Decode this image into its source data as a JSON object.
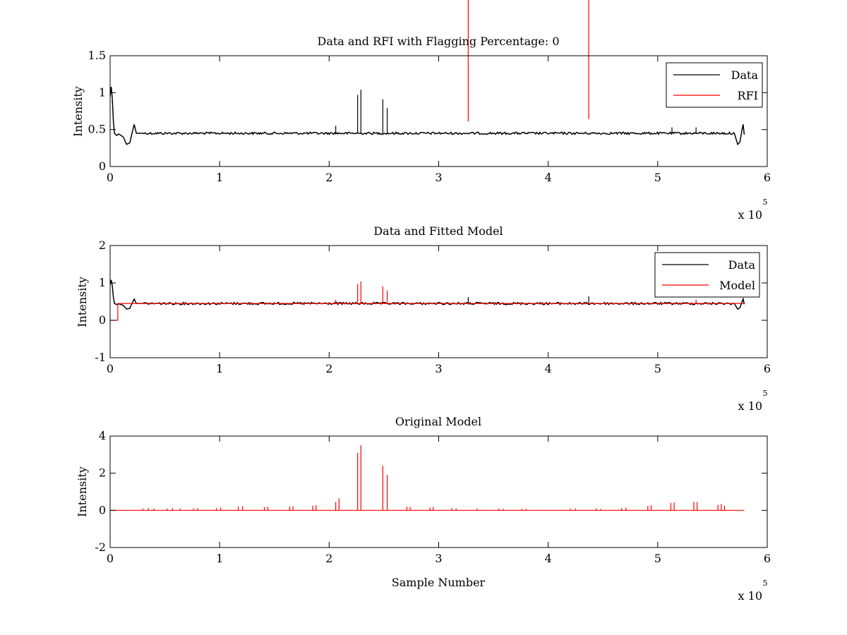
{
  "chart_data": [
    {
      "type": "line",
      "title": "Data and RFI with Flagging Percentage: 0",
      "xlabel": "",
      "ylabel": "Intensity",
      "xlim": [
        0,
        600000
      ],
      "ylim": [
        0,
        1.5
      ],
      "xticks": [
        0,
        1,
        2,
        3,
        4,
        5,
        6
      ],
      "xticklabels": [
        "0",
        "1",
        "2",
        "3",
        "4",
        "5",
        "6"
      ],
      "yticks": [
        0,
        0.5,
        1,
        1.5
      ],
      "yticklabels": [
        "0",
        "0.5",
        "1",
        "1.5"
      ],
      "x_multiplier": {
        "base": "x 10",
        "exponent": "5"
      },
      "legend": {
        "position": "top-right",
        "entries": [
          "Data",
          "RFI"
        ]
      },
      "grid": false,
      "series": [
        {
          "name": "Data",
          "color": "#000000",
          "baseline": 0.45,
          "start_x": 0,
          "end_x": 579000,
          "x": [
            0,
            1000,
            2000,
            3000,
            4000,
            6000,
            8000,
            12000,
            15000,
            18000,
            20000,
            22000,
            24000,
            30000,
            570000,
            573000,
            575000,
            577000,
            578000,
            579000
          ],
          "y": [
            0.95,
            1.08,
            0.92,
            0.6,
            0.45,
            0.42,
            0.44,
            0.4,
            0.3,
            0.32,
            0.45,
            0.57,
            0.45,
            0.45,
            0.45,
            0.3,
            0.33,
            0.5,
            0.57,
            0.43
          ],
          "spikes": [
            {
              "x": 206000,
              "y": 0.55
            },
            {
              "x": 226000,
              "y": 0.97
            },
            {
              "x": 229000,
              "y": 1.04
            },
            {
              "x": 249000,
              "y": 0.91
            },
            {
              "x": 253000,
              "y": 0.79
            },
            {
              "x": 513000,
              "y": 0.53
            },
            {
              "x": 535000,
              "y": 0.53
            }
          ]
        },
        {
          "name": "RFI",
          "color": "#ff0000",
          "spikes": [
            {
              "x": 327000,
              "y": 0.61
            },
            {
              "x": 437000,
              "y": 0.64
            }
          ]
        }
      ]
    },
    {
      "type": "line",
      "title": "Data and Fitted Model",
      "xlabel": "",
      "ylabel": "Intensity",
      "xlim": [
        0,
        600000
      ],
      "ylim": [
        -1,
        2
      ],
      "xticks": [
        0,
        1,
        2,
        3,
        4,
        5,
        6
      ],
      "xticklabels": [
        "0",
        "1",
        "2",
        "3",
        "4",
        "5",
        "6"
      ],
      "yticks": [
        -1,
        0,
        1,
        2
      ],
      "yticklabels": [
        "-1",
        "0",
        "1",
        "2"
      ],
      "x_multiplier": {
        "base": "x 10",
        "exponent": "5"
      },
      "legend": {
        "position": "top-right",
        "entries": [
          "Data",
          "Model"
        ]
      },
      "grid": false,
      "series": [
        {
          "name": "Data",
          "color": "#000000",
          "baseline": 0.45,
          "start_x": 0,
          "end_x": 579000,
          "x": [
            0,
            1000,
            2000,
            3000,
            4000,
            6000,
            8000,
            12000,
            15000,
            18000,
            20000,
            22000,
            24000,
            30000,
            570000,
            573000,
            575000,
            577000,
            578000,
            579000
          ],
          "y": [
            0.95,
            1.08,
            0.92,
            0.6,
            0.45,
            0.42,
            0.44,
            0.4,
            0.3,
            0.32,
            0.45,
            0.57,
            0.45,
            0.45,
            0.45,
            0.3,
            0.33,
            0.5,
            0.57,
            0.43
          ],
          "spikes": [
            {
              "x": 327000,
              "y": 0.62
            },
            {
              "x": 437000,
              "y": 0.64
            }
          ]
        },
        {
          "name": "Model",
          "color": "#ff0000",
          "baseline": 0.45,
          "start_x": 7000,
          "end_x": 579000,
          "pre_x": [
            0,
            7000
          ],
          "pre_y": [
            0,
            0
          ],
          "spikes": [
            {
              "x": 206000,
              "y": 0.55
            },
            {
              "x": 226000,
              "y": 0.97
            },
            {
              "x": 229000,
              "y": 1.04
            },
            {
              "x": 249000,
              "y": 0.91
            },
            {
              "x": 253000,
              "y": 0.8
            },
            {
              "x": 535000,
              "y": 0.55
            }
          ]
        }
      ]
    },
    {
      "type": "line",
      "title": "Original Model",
      "xlabel": "Sample Number",
      "ylabel": "Intensity",
      "xlim": [
        0,
        600000
      ],
      "ylim": [
        -2,
        4
      ],
      "xticks": [
        0,
        1,
        2,
        3,
        4,
        5,
        6
      ],
      "xticklabels": [
        "0",
        "1",
        "2",
        "3",
        "4",
        "5",
        "6"
      ],
      "yticks": [
        -2,
        0,
        2,
        4
      ],
      "yticklabels": [
        "-2",
        "0",
        "2",
        "4"
      ],
      "x_multiplier": {
        "base": "x 10",
        "exponent": "5"
      },
      "legend": null,
      "grid": false,
      "series": [
        {
          "name": "",
          "color": "#ff0000",
          "baseline": 0,
          "start_x": 0,
          "end_x": 579000,
          "spikes": [
            {
              "x": 30000,
              "y": 0.1
            },
            {
              "x": 35000,
              "y": 0.12
            },
            {
              "x": 40000,
              "y": 0.1
            },
            {
              "x": 52000,
              "y": 0.1
            },
            {
              "x": 57000,
              "y": 0.12
            },
            {
              "x": 64000,
              "y": 0.1
            },
            {
              "x": 76000,
              "y": 0.1
            },
            {
              "x": 80000,
              "y": 0.12
            },
            {
              "x": 97000,
              "y": 0.12
            },
            {
              "x": 101000,
              "y": 0.15
            },
            {
              "x": 117000,
              "y": 0.2
            },
            {
              "x": 121000,
              "y": 0.22
            },
            {
              "x": 141000,
              "y": 0.18
            },
            {
              "x": 144000,
              "y": 0.2
            },
            {
              "x": 164000,
              "y": 0.2
            },
            {
              "x": 167000,
              "y": 0.22
            },
            {
              "x": 185000,
              "y": 0.25
            },
            {
              "x": 188000,
              "y": 0.28
            },
            {
              "x": 206000,
              "y": 0.45
            },
            {
              "x": 209000,
              "y": 0.65
            },
            {
              "x": 226000,
              "y": 3.1
            },
            {
              "x": 229000,
              "y": 3.5
            },
            {
              "x": 249000,
              "y": 2.4
            },
            {
              "x": 253000,
              "y": 1.9
            },
            {
              "x": 271000,
              "y": 0.2
            },
            {
              "x": 274000,
              "y": 0.18
            },
            {
              "x": 292000,
              "y": 0.15
            },
            {
              "x": 295000,
              "y": 0.18
            },
            {
              "x": 312000,
              "y": 0.12
            },
            {
              "x": 316000,
              "y": 0.1
            },
            {
              "x": 335000,
              "y": 0.1
            },
            {
              "x": 355000,
              "y": 0.1
            },
            {
              "x": 359000,
              "y": 0.08
            },
            {
              "x": 376000,
              "y": 0.08
            },
            {
              "x": 380000,
              "y": 0.08
            },
            {
              "x": 420000,
              "y": 0.1
            },
            {
              "x": 425000,
              "y": 0.1
            },
            {
              "x": 444000,
              "y": 0.1
            },
            {
              "x": 448000,
              "y": 0.08
            },
            {
              "x": 467000,
              "y": 0.12
            },
            {
              "x": 471000,
              "y": 0.15
            },
            {
              "x": 491000,
              "y": 0.25
            },
            {
              "x": 494000,
              "y": 0.28
            },
            {
              "x": 512000,
              "y": 0.4
            },
            {
              "x": 515000,
              "y": 0.42
            },
            {
              "x": 533000,
              "y": 0.45
            },
            {
              "x": 536000,
              "y": 0.45
            },
            {
              "x": 555000,
              "y": 0.3
            },
            {
              "x": 558000,
              "y": 0.35
            },
            {
              "x": 561000,
              "y": 0.25
            }
          ]
        }
      ]
    }
  ]
}
